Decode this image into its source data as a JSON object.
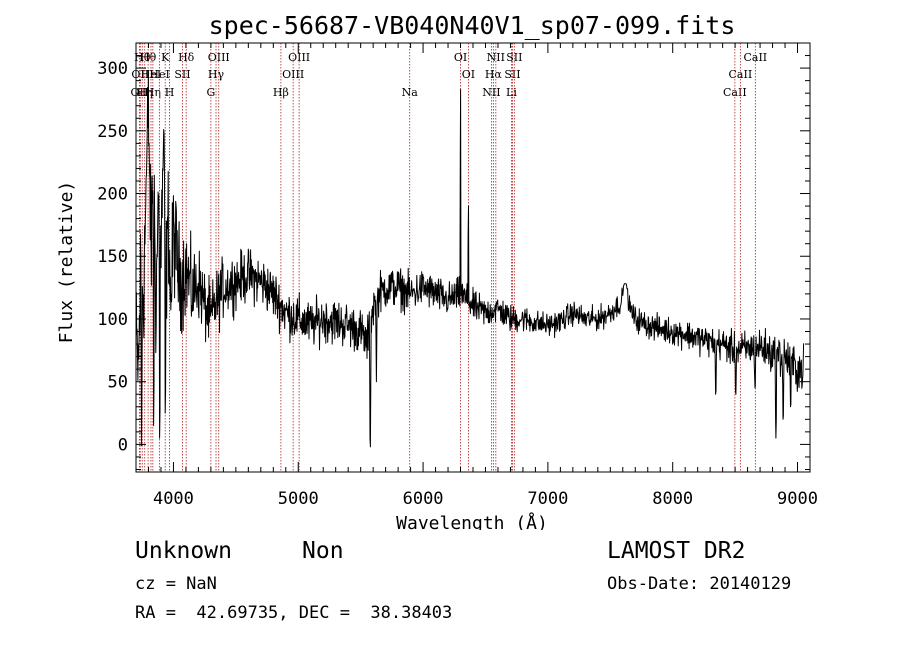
{
  "chart_data": {
    "type": "line",
    "title": "spec-56687-VB040N40V1_sp07-099.fits",
    "xlabel": "Wavelength (Å)",
    "ylabel": "Flux (relative)",
    "xlim": [
      3700,
      9100
    ],
    "ylim": [
      -22,
      320
    ],
    "xticks": [
      {
        "value": 4000,
        "label": "4000"
      },
      {
        "value": 5000,
        "label": "5000"
      },
      {
        "value": 6000,
        "label": "6000"
      },
      {
        "value": 7000,
        "label": "7000"
      },
      {
        "value": 8000,
        "label": "8000"
      },
      {
        "value": 9000,
        "label": "9000"
      }
    ],
    "yticks": [
      {
        "value": 0,
        "label": "0"
      },
      {
        "value": 50,
        "label": "50"
      },
      {
        "value": 100,
        "label": "100"
      },
      {
        "value": 150,
        "label": "150"
      },
      {
        "value": 200,
        "label": "200"
      },
      {
        "value": 250,
        "label": "250"
      },
      {
        "value": 300,
        "label": "300"
      }
    ],
    "line_color": "#000000",
    "marker_color": "#b22222",
    "spectrum": {
      "anchors": [
        [
          3700,
          80
        ],
        [
          3720,
          60
        ],
        [
          3740,
          150
        ],
        [
          3760,
          120
        ],
        [
          3780,
          200
        ],
        [
          3800,
          270
        ],
        [
          3820,
          150
        ],
        [
          3840,
          230
        ],
        [
          3860,
          110
        ],
        [
          3880,
          200
        ],
        [
          3900,
          150
        ],
        [
          3920,
          240
        ],
        [
          3940,
          130
        ],
        [
          3960,
          180
        ],
        [
          3980,
          110
        ],
        [
          4000,
          170
        ],
        [
          4050,
          130
        ],
        [
          4100,
          140
        ],
        [
          4150,
          120
        ],
        [
          4200,
          130
        ],
        [
          4250,
          110
        ],
        [
          4300,
          100
        ],
        [
          4330,
          110
        ],
        [
          4400,
          125
        ],
        [
          4500,
          130
        ],
        [
          4600,
          135
        ],
        [
          4700,
          130
        ],
        [
          4800,
          120
        ],
        [
          4900,
          105
        ],
        [
          5000,
          100
        ],
        [
          5100,
          95
        ],
        [
          5200,
          100
        ],
        [
          5300,
          98
        ],
        [
          5400,
          95
        ],
        [
          5500,
          90
        ],
        [
          5550,
          80
        ],
        [
          5600,
          110
        ],
        [
          5650,
          120
        ],
        [
          5700,
          125
        ],
        [
          5800,
          125
        ],
        [
          5900,
          120
        ],
        [
          6000,
          125
        ],
        [
          6100,
          120
        ],
        [
          6200,
          115
        ],
        [
          6300,
          120
        ],
        [
          6400,
          110
        ],
        [
          6500,
          105
        ],
        [
          6600,
          108
        ],
        [
          6700,
          100
        ],
        [
          6800,
          100
        ],
        [
          6900,
          97
        ],
        [
          7000,
          95
        ],
        [
          7100,
          98
        ],
        [
          7200,
          105
        ],
        [
          7300,
          100
        ],
        [
          7400,
          100
        ],
        [
          7500,
          105
        ],
        [
          7600,
          115
        ],
        [
          7650,
          110
        ],
        [
          7700,
          100
        ],
        [
          7800,
          95
        ],
        [
          7900,
          92
        ],
        [
          8000,
          90
        ],
        [
          8100,
          88
        ],
        [
          8200,
          85
        ],
        [
          8300,
          82
        ],
        [
          8400,
          80
        ],
        [
          8500,
          75
        ],
        [
          8600,
          76
        ],
        [
          8700,
          78
        ],
        [
          8800,
          72
        ],
        [
          8900,
          70
        ],
        [
          9000,
          60
        ]
      ],
      "noise": [
        [
          3700,
          40
        ],
        [
          4000,
          35
        ],
        [
          4200,
          22
        ],
        [
          4500,
          16
        ],
        [
          5000,
          14
        ],
        [
          5600,
          13
        ],
        [
          6000,
          11
        ],
        [
          6500,
          9
        ],
        [
          7000,
          7
        ],
        [
          7500,
          7
        ],
        [
          8000,
          8
        ],
        [
          8500,
          10
        ],
        [
          9000,
          14
        ]
      ],
      "features": [
        {
          "x": 6300,
          "value": 283,
          "width": 4
        },
        {
          "x": 6363,
          "value": 190,
          "width": 4
        },
        {
          "x": 5577,
          "value": -2,
          "width": 6
        },
        {
          "x": 5626,
          "value": 50,
          "width": 5
        },
        {
          "x": 3745,
          "value": -1,
          "width": 5
        },
        {
          "x": 3842,
          "value": 15,
          "width": 5
        },
        {
          "x": 3890,
          "value": 5,
          "width": 5
        },
        {
          "x": 3935,
          "value": 25,
          "width": 5
        },
        {
          "x": 8345,
          "value": 40,
          "width": 6
        },
        {
          "x": 8505,
          "value": 40,
          "width": 6
        },
        {
          "x": 8660,
          "value": 45,
          "width": 6
        },
        {
          "x": 8827,
          "value": 5,
          "width": 6
        },
        {
          "x": 8885,
          "value": 20,
          "width": 6
        },
        {
          "x": 8945,
          "value": 30,
          "width": 6
        },
        {
          "x": 7620,
          "value": 128,
          "width": 30
        }
      ]
    },
    "line_markers": [
      {
        "x": 3727,
        "label": "OII",
        "row": 2
      },
      {
        "x": 3734,
        "label": "OII",
        "row": 1
      },
      {
        "x": 3750,
        "label": "Hθ",
        "row": 0
      },
      {
        "x": 3770,
        "label": "Hη",
        "row": 2
      },
      {
        "x": 3797,
        "label": "Hθ",
        "row": 0
      },
      {
        "x": 3820,
        "label": "HeI",
        "row": 1
      },
      {
        "x": 3835,
        "label": "Hη",
        "row": 2
      },
      {
        "x": 3889,
        "label": "HeI",
        "row": 1
      },
      {
        "x": 3934,
        "label": "K",
        "row": 0
      },
      {
        "x": 3969,
        "label": "H",
        "row": 2
      },
      {
        "x": 4072,
        "label": "SII",
        "row": 1
      },
      {
        "x": 4102,
        "label": "Hδ",
        "row": 0
      },
      {
        "x": 4300,
        "label": "G",
        "row": 2
      },
      {
        "x": 4341,
        "label": "Hγ",
        "row": 1
      },
      {
        "x": 4363,
        "label": "OIII",
        "row": 0
      },
      {
        "x": 4861,
        "label": "Hβ",
        "row": 2
      },
      {
        "x": 4959,
        "label": "OIII",
        "row": 1
      },
      {
        "x": 5007,
        "label": "OIII",
        "row": 0
      },
      {
        "x": 5893,
        "label": "Na",
        "row": 2
      },
      {
        "x": 6300,
        "label": "OI",
        "row": 0
      },
      {
        "x": 6363,
        "label": "OI",
        "row": 1
      },
      {
        "x": 6548,
        "label": "NII",
        "row": 2
      },
      {
        "x": 6563,
        "label": "Hα",
        "row": 1
      },
      {
        "x": 6583,
        "label": "NII",
        "row": 0
      },
      {
        "x": 6708,
        "label": "Li",
        "row": 2
      },
      {
        "x": 6716,
        "label": "SII",
        "row": 1
      },
      {
        "x": 6731,
        "label": "SII",
        "row": 0
      },
      {
        "x": 8498,
        "label": "CaII",
        "row": 2
      },
      {
        "x": 8542,
        "label": "CaII",
        "row": 1
      },
      {
        "x": 8662,
        "label": "CaII",
        "row": 0
      }
    ]
  },
  "info": {
    "class": "Unknown",
    "subclass": "Non",
    "survey": "LAMOST DR2",
    "cz": "cz = NaN",
    "obs_date": "Obs-Date: 20140129",
    "coords": "RA =  42.69735, DEC =  38.38403"
  }
}
